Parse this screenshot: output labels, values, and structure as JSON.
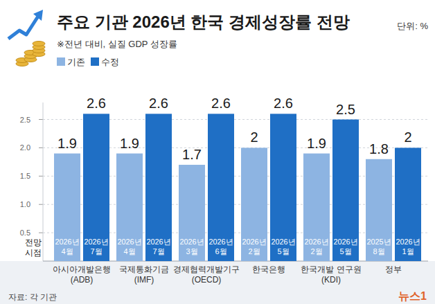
{
  "chart_data": {
    "type": "bar",
    "title": "주요 기관 2026년 한국 경제성장률 전망",
    "unit": "단위: %",
    "subtitle": "※전년 대비, 실질 GDP 성장률",
    "categories": [
      "아시아개발은행\n(ADB)",
      "국제통화기금\n(IMF)",
      "경제협력개발기구\n(OECD)",
      "한국은행",
      "한국개발 연구원\n(KDI)",
      "정부"
    ],
    "series": [
      {
        "name": "기존",
        "color": "#8db4e2",
        "values": [
          1.9,
          1.9,
          1.7,
          2.0,
          1.9,
          1.8
        ],
        "dates": [
          "2026년\n4월",
          "2026년\n4월",
          "2026년\n3월",
          "2026년\n2월",
          "2026년\n2월",
          "2025년\n8월"
        ]
      },
      {
        "name": "수정",
        "color": "#1f6fc5",
        "values": [
          2.6,
          2.6,
          2.6,
          2.6,
          2.5,
          2.0
        ],
        "dates": [
          "2026년\n7월",
          "2026년\n7월",
          "2026년\n6월",
          "2026년\n5월",
          "2026년\n5월",
          "2026년\n1월"
        ]
      }
    ],
    "date_label": "전망 시점",
    "ylim": [
      0,
      2.8
    ],
    "yticks": [
      0.5,
      {
        "value": 1,
        "label": "1.0"
      },
      1.5,
      {
        "value": 2,
        "label": "2.0"
      },
      2.5
    ],
    "grid": true,
    "data_labels": true,
    "legend": "top-left",
    "source": "자료: 각 기관",
    "logo": "뉴스1"
  }
}
